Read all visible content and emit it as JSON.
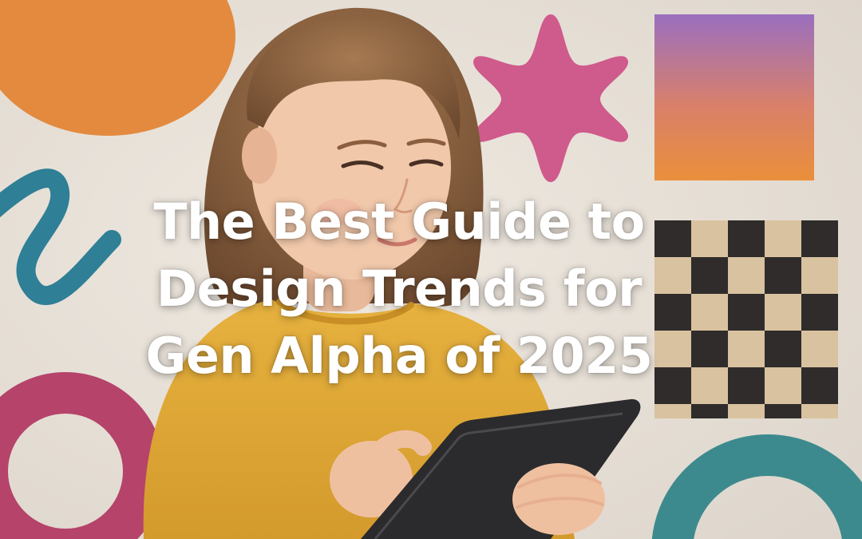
{
  "headline": {
    "lines": [
      "The Best Guide to",
      "Design Trends for",
      "Gen Alpha of 2025"
    ]
  },
  "palette": {
    "wall": "#e9e3db",
    "orange_blob": "#e38a3e",
    "pink_star": "#cf5a8c",
    "gradient_top": "#9a6fbf",
    "gradient_bottom": "#ea8f3a",
    "checker_dark": "#2f2c2b",
    "checker_light": "#d9c2a0",
    "teal_squiggle": "#2f7f96",
    "pink_ring": "#b5436a",
    "teal_arc": "#3d8a8e",
    "sweater": "#e3aa35",
    "tablet": "#2b2b2d"
  }
}
